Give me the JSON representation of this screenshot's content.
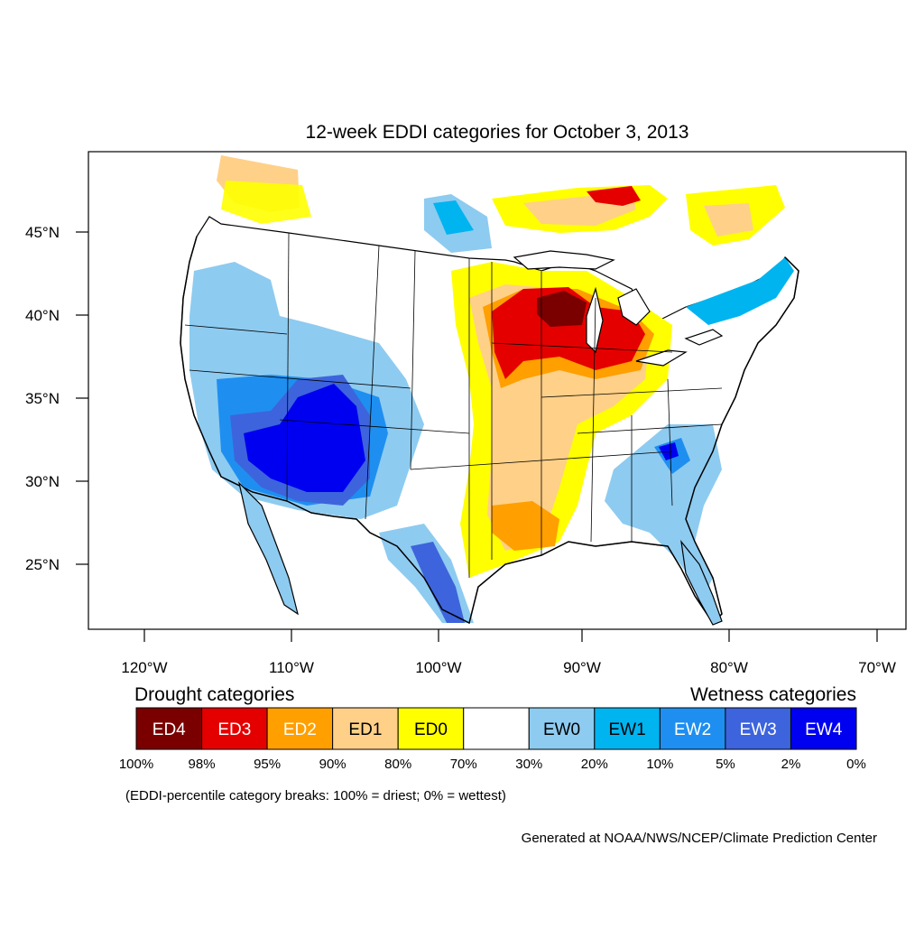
{
  "title": "12-week EDDI categories for October 3, 2013",
  "axes": {
    "x_ticks": [
      "120°W",
      "110°W",
      "100°W",
      "90°W",
      "80°W",
      "70°W"
    ],
    "y_ticks": [
      "45°N",
      "40°N",
      "35°N",
      "30°N",
      "25°N"
    ]
  },
  "legend": {
    "drought_heading": "Drought categories",
    "wetness_heading": "Wetness categories",
    "boxes": [
      {
        "label": "ED4",
        "color": "#7a0000",
        "text_color": "#ffffff"
      },
      {
        "label": "ED3",
        "color": "#e50000",
        "text_color": "#ffffff"
      },
      {
        "label": "ED2",
        "color": "#ff9f00",
        "text_color": "#ffffff"
      },
      {
        "label": "ED1",
        "color": "#ffd088",
        "text_color": "#000000"
      },
      {
        "label": "ED0",
        "color": "#ffff00",
        "text_color": "#000000"
      },
      {
        "label": "",
        "color": "#ffffff",
        "text_color": "#000000"
      },
      {
        "label": "EW0",
        "color": "#8ecbf0",
        "text_color": "#000000"
      },
      {
        "label": "EW1",
        "color": "#00b4f0",
        "text_color": "#000000"
      },
      {
        "label": "EW2",
        "color": "#1e8ff0",
        "text_color": "#ffffff"
      },
      {
        "label": "EW3",
        "color": "#3d64dc",
        "text_color": "#ffffff"
      },
      {
        "label": "EW4",
        "color": "#0000f0",
        "text_color": "#ffffff"
      }
    ],
    "percentiles": [
      "100%",
      "98%",
      "95%",
      "90%",
      "80%",
      "70%",
      "30%",
      "20%",
      "10%",
      "5%",
      "2%",
      "0%"
    ]
  },
  "note": "(EDDI-percentile category breaks: 100% = driest; 0% = wettest)",
  "credit": "Generated at NOAA/NWS/NCEP/Climate Prediction Center"
}
